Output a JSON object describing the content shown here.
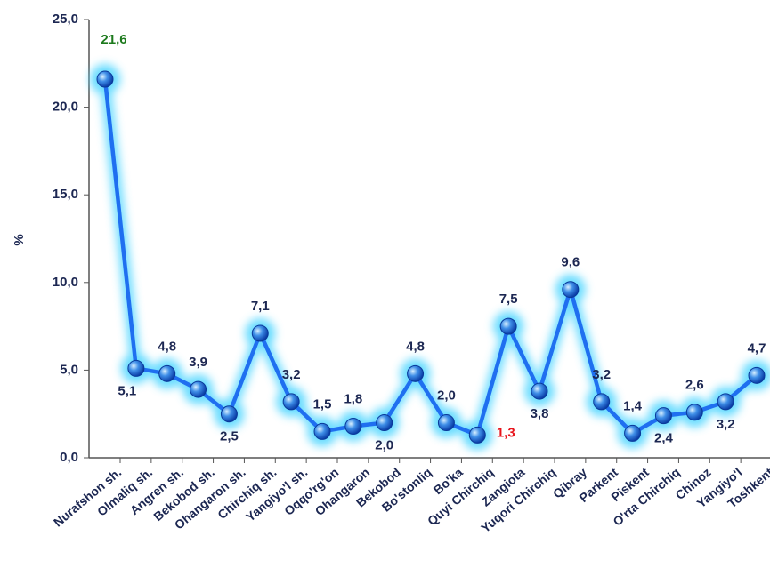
{
  "chart_data": {
    "type": "line",
    "ylabel": "%",
    "categories": [
      "Nurafshon sh.",
      "Olmaliq sh.",
      "Angren sh.",
      "Bekobod sh.",
      "Ohangaron sh.",
      "Chirchiq sh.",
      "Yangiyo'l sh.",
      "Oqqo'rg'on",
      "Ohangaron",
      "Bekobod",
      "Bo'stonliq",
      "Bo'ka",
      "Quyi Chirchiq",
      "Zangiota",
      "Yuqori Chirchiq",
      "Qibray",
      "Parkent",
      "Piskent",
      "O'rta Chirchiq",
      "Chinoz",
      "Yangiyo'l",
      "Toshkent"
    ],
    "series": [
      {
        "name": "%",
        "color": "#1f6ff0",
        "values": [
          21.6,
          5.1,
          4.8,
          3.9,
          2.5,
          7.1,
          3.2,
          1.5,
          1.8,
          2.0,
          4.8,
          2.0,
          1.3,
          7.5,
          3.8,
          9.6,
          3.2,
          1.4,
          2.4,
          2.6,
          3.2,
          4.7
        ],
        "value_labels": [
          "21,6",
          "5,1",
          "4,8",
          "3,9",
          "2,5",
          "7,1",
          "3,2",
          "1,5",
          "1,8",
          "2,0",
          "4,8",
          "2,0",
          "1,3",
          "7,5",
          "3,8",
          "9,6",
          "3,2",
          "1,4",
          "2,4",
          "2,6",
          "3,2",
          "4,7"
        ]
      }
    ],
    "max_label_color": "#1d7a1d",
    "min_label_color": "#e8141c",
    "ylim": [
      0,
      25
    ],
    "yticks": [
      {
        "value": 0,
        "label": "0,0"
      },
      {
        "value": 5,
        "label": "5,0"
      },
      {
        "value": 10,
        "label": "10,0"
      },
      {
        "value": 15,
        "label": "15,0"
      },
      {
        "value": 20,
        "label": "20,0"
      },
      {
        "value": 25,
        "label": "25,0"
      }
    ]
  }
}
